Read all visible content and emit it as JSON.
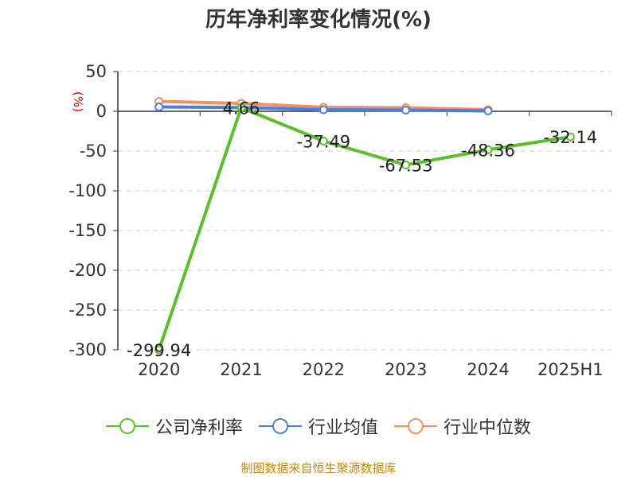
{
  "chart_data": {
    "type": "line",
    "title": "历年净利率变化情况(%)",
    "ylabel": "(%)",
    "xlabel": "",
    "categories": [
      "2020",
      "2021",
      "2022",
      "2023",
      "2024",
      "2025H1"
    ],
    "ylim": [
      -300,
      50
    ],
    "yticks": [
      50,
      0,
      -50,
      -100,
      -150,
      -200,
      -250,
      -300
    ],
    "ytick_labels": [
      "50",
      "0",
      "-50",
      "-100",
      "-150",
      "-200",
      "-250",
      "-300"
    ],
    "grid": true,
    "legend_position": "bottom",
    "series": [
      {
        "name": "公司净利率",
        "color": "#5bbf2b",
        "values": [
          -299.94,
          4.66,
          -37.49,
          -67.53,
          -48.36,
          -32.14
        ],
        "labels": [
          "-299.94",
          "4.66",
          "-37.49",
          "-67.53",
          "-48.36",
          "-32.14"
        ]
      },
      {
        "name": "行业均值",
        "color": "#4a7fe0",
        "values": [
          5.5,
          4.8,
          2,
          1.5,
          0.5,
          null
        ]
      },
      {
        "name": "行业中位数",
        "color": "#f39063",
        "values": [
          12.5,
          10,
          5,
          4.5,
          2,
          null
        ]
      }
    ]
  },
  "colors": {
    "ylabel": "#e00000",
    "axis": "#333333",
    "grid": "#cccccc",
    "source": "#c8860a"
  },
  "source": "制图数据来自恒生聚源数据库"
}
